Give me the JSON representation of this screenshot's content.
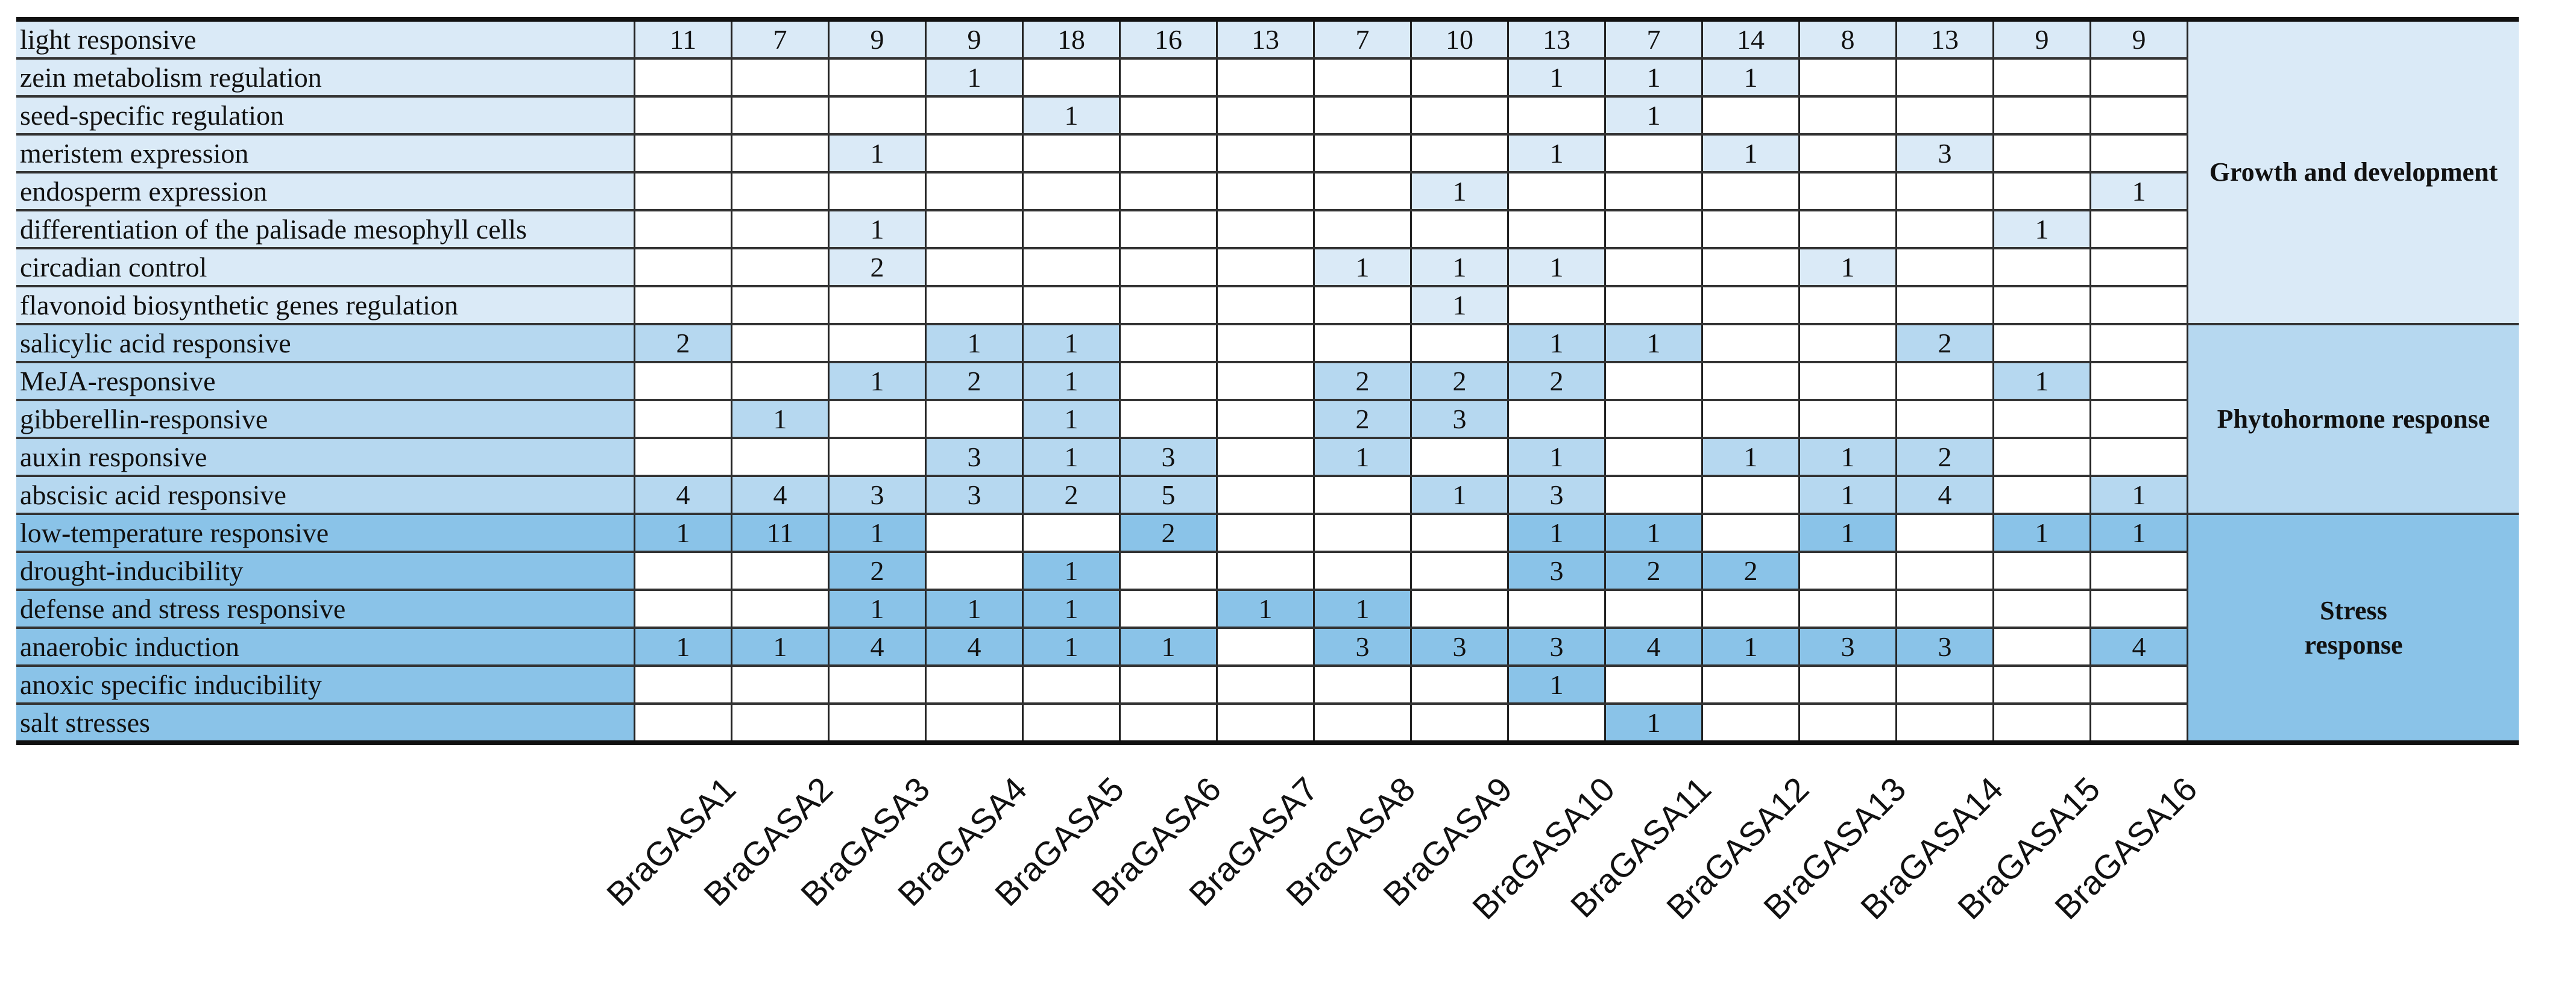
{
  "chart_data": {
    "type": "table",
    "columns": [
      "BraGASA1",
      "BraGASA2",
      "BraGASA3",
      "BraGASA4",
      "BraGASA5",
      "BraGASA6",
      "BraGASA7",
      "BraGASA8",
      "BraGASA9",
      "BraGASA10",
      "BraGASA11",
      "BraGASA12",
      "BraGASA13",
      "BraGASA14",
      "BraGASA15",
      "BraGASA16"
    ],
    "groups": [
      {
        "name": "Growth and development",
        "color": "#daeaf7",
        "rows": [
          {
            "label": "light responsive",
            "values": [
              11,
              7,
              9,
              9,
              18,
              16,
              13,
              7,
              10,
              13,
              7,
              14,
              8,
              13,
              9,
              9
            ]
          },
          {
            "label": "zein metabolism regulation",
            "values": [
              null,
              null,
              null,
              1,
              null,
              null,
              null,
              null,
              null,
              1,
              1,
              1,
              null,
              null,
              null,
              null
            ]
          },
          {
            "label": "seed-specific regulation",
            "values": [
              null,
              null,
              null,
              null,
              1,
              null,
              null,
              null,
              null,
              null,
              1,
              null,
              null,
              null,
              null,
              null
            ]
          },
          {
            "label": "meristem expression",
            "values": [
              null,
              null,
              1,
              null,
              null,
              null,
              null,
              null,
              null,
              1,
              null,
              1,
              null,
              3,
              null,
              null
            ]
          },
          {
            "label": "endosperm expression",
            "values": [
              null,
              null,
              null,
              null,
              null,
              null,
              null,
              null,
              1,
              null,
              null,
              null,
              null,
              null,
              null,
              1
            ]
          },
          {
            "label": "differentiation of the palisade mesophyll cells",
            "values": [
              null,
              null,
              1,
              null,
              null,
              null,
              null,
              null,
              null,
              null,
              null,
              null,
              null,
              null,
              1,
              null
            ]
          },
          {
            "label": "circadian control",
            "values": [
              null,
              null,
              2,
              null,
              null,
              null,
              null,
              1,
              1,
              1,
              null,
              null,
              1,
              null,
              null,
              null
            ]
          },
          {
            "label": "flavonoid biosynthetic genes regulation",
            "values": [
              null,
              null,
              null,
              null,
              null,
              null,
              null,
              null,
              1,
              null,
              null,
              null,
              null,
              null,
              null,
              null
            ]
          }
        ]
      },
      {
        "name": "Phytohormone response",
        "color": "#b6d8f0",
        "rows": [
          {
            "label": "salicylic acid responsive",
            "values": [
              2,
              null,
              null,
              1,
              1,
              null,
              null,
              null,
              null,
              1,
              1,
              null,
              null,
              2,
              null,
              null
            ]
          },
          {
            "label": "MeJA-responsive",
            "values": [
              null,
              null,
              1,
              2,
              1,
              null,
              null,
              2,
              2,
              2,
              null,
              null,
              null,
              null,
              1,
              null
            ]
          },
          {
            "label": "gibberellin-responsive",
            "values": [
              null,
              1,
              null,
              null,
              1,
              null,
              null,
              2,
              3,
              null,
              null,
              null,
              null,
              null,
              null,
              null
            ]
          },
          {
            "label": "auxin responsive",
            "values": [
              null,
              null,
              null,
              3,
              1,
              3,
              null,
              1,
              null,
              1,
              null,
              1,
              1,
              2,
              null,
              null
            ]
          },
          {
            "label": "abscisic acid responsive",
            "values": [
              4,
              4,
              3,
              3,
              2,
              5,
              null,
              null,
              1,
              3,
              null,
              null,
              1,
              4,
              null,
              1
            ]
          }
        ]
      },
      {
        "name": "Stress response",
        "color": "#8ac3e8",
        "rows": [
          {
            "label": "low-temperature responsive",
            "values": [
              1,
              11,
              1,
              null,
              null,
              2,
              null,
              null,
              null,
              1,
              1,
              null,
              1,
              null,
              1,
              1
            ]
          },
          {
            "label": "drought-inducibility",
            "values": [
              null,
              null,
              2,
              null,
              1,
              null,
              null,
              null,
              null,
              3,
              2,
              2,
              null,
              null,
              null,
              null
            ]
          },
          {
            "label": "defense and stress responsive",
            "values": [
              null,
              null,
              1,
              1,
              1,
              null,
              1,
              1,
              null,
              null,
              null,
              null,
              null,
              null,
              null,
              null
            ]
          },
          {
            "label": "anaerobic induction",
            "values": [
              1,
              1,
              4,
              4,
              1,
              1,
              null,
              3,
              3,
              3,
              4,
              1,
              3,
              3,
              null,
              4
            ]
          },
          {
            "label": "anoxic specific inducibility",
            "values": [
              null,
              null,
              null,
              null,
              null,
              null,
              null,
              null,
              null,
              1,
              null,
              null,
              null,
              null,
              null,
              null
            ]
          },
          {
            "label": "salt stresses",
            "values": [
              null,
              null,
              null,
              null,
              null,
              null,
              null,
              null,
              null,
              null,
              1,
              null,
              null,
              null,
              null,
              null
            ]
          }
        ]
      }
    ]
  }
}
